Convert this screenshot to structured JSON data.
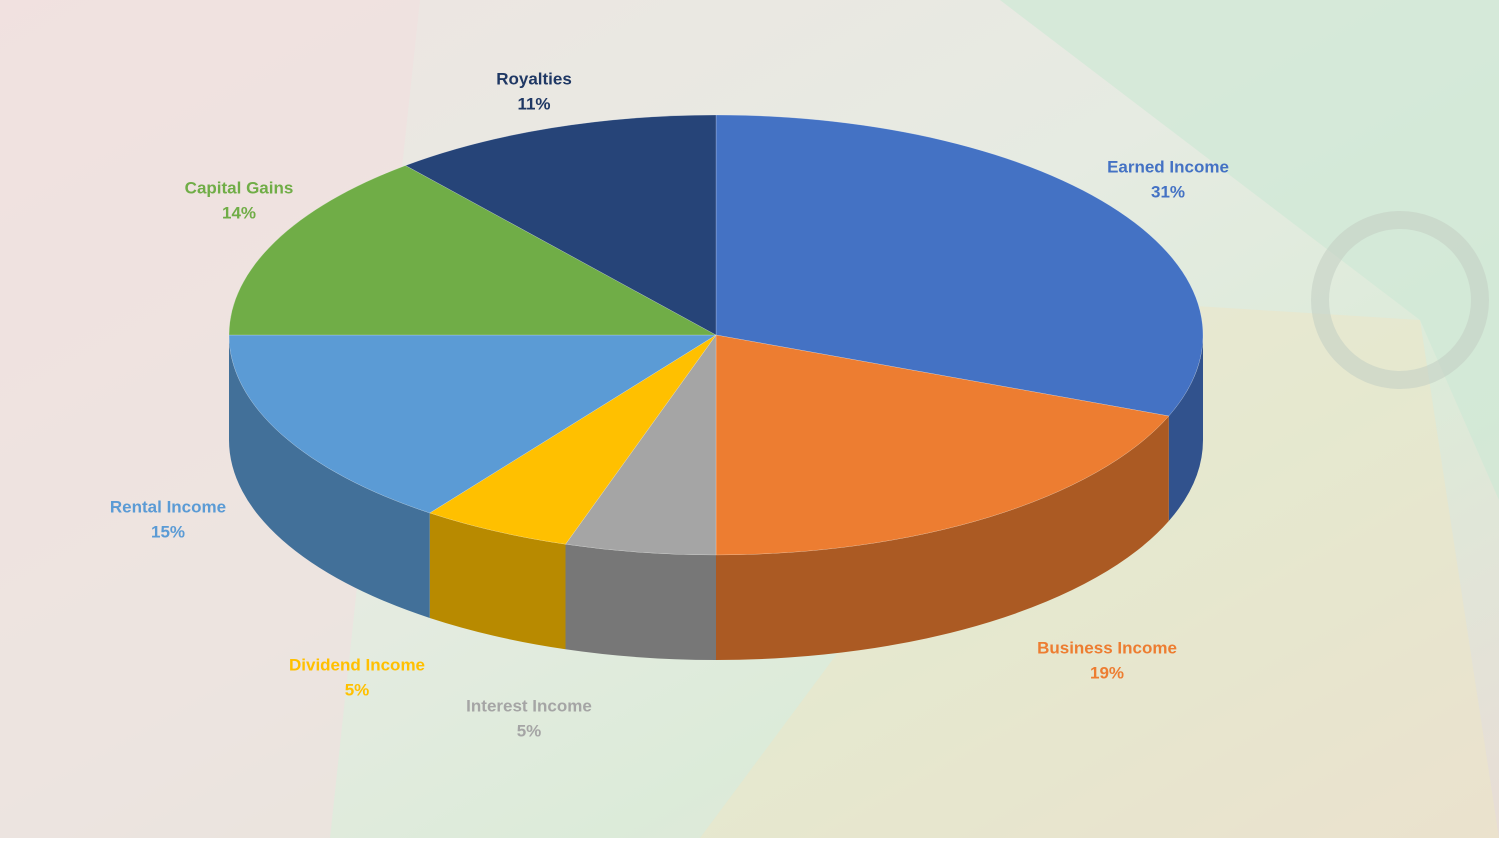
{
  "chart_data": {
    "type": "pie",
    "categories": [
      "Earned Income",
      "Business Income",
      "Interest Income",
      "Dividend Income",
      "Rental Income",
      "Capital Gains",
      "Royalties"
    ],
    "values": [
      31,
      19,
      5,
      5,
      15,
      14,
      11
    ],
    "value_labels": [
      "31%",
      "19%",
      "5%",
      "5%",
      "15%",
      "14%",
      "11%"
    ],
    "colors": [
      "#4472c4",
      "#ed7d31",
      "#a5a5a5",
      "#ffc000",
      "#5b9bd5",
      "#70ad47",
      "#264478"
    ],
    "label_colors": [
      "#4472c4",
      "#ed7d31",
      "#a5a5a5",
      "#ffc000",
      "#5b9bd5",
      "#70ad47",
      "#1f3864"
    ]
  }
}
